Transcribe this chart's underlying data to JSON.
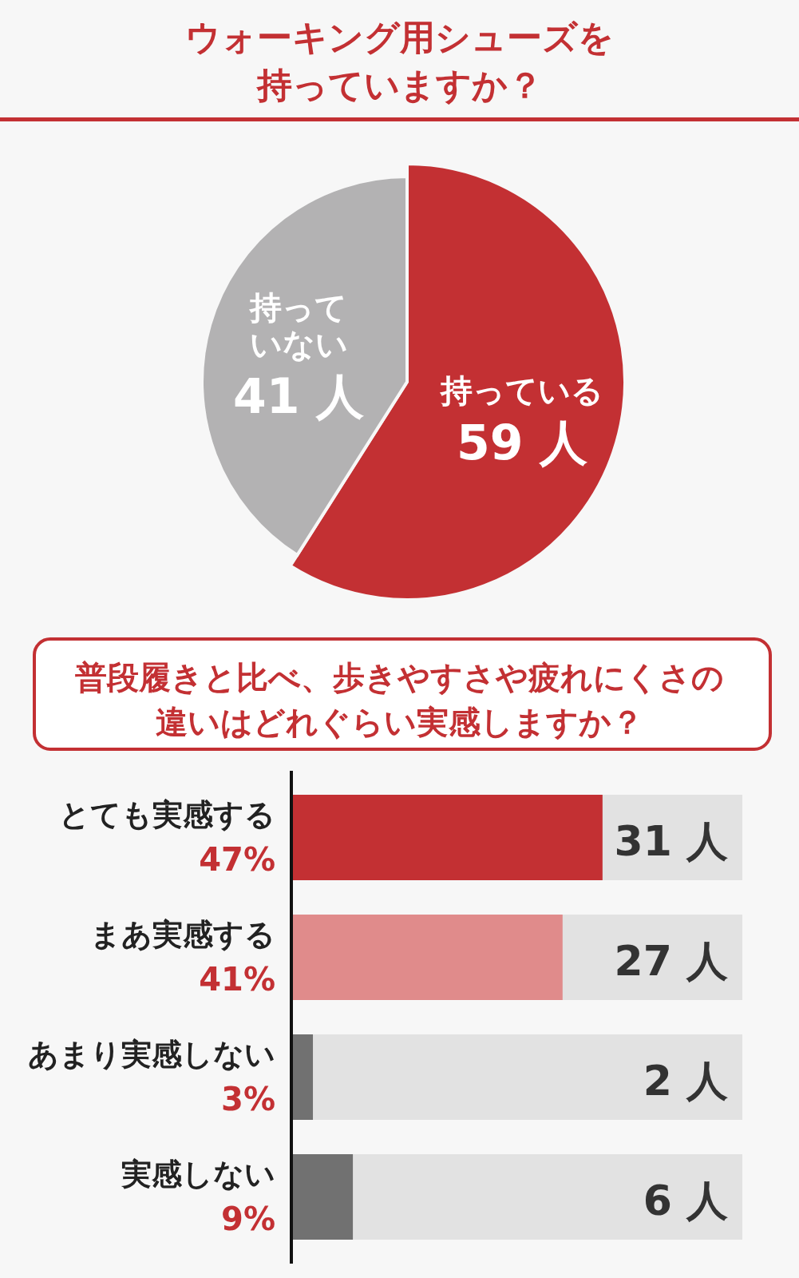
{
  "chart_data": [
    {
      "type": "pie",
      "title": "ウォーキング用シューズを持っていますか？",
      "categories": [
        "持っている",
        "持っていない"
      ],
      "values": [
        59,
        41
      ],
      "colors": [
        "#c33033",
        "#b3b2b3"
      ],
      "value_labels": [
        "59 人",
        "41 人"
      ]
    },
    {
      "type": "bar",
      "orientation": "horizontal",
      "title": "普段履きと比べ、歩きやすさや疲れにくさの違いはどれぐらい実感しますか？",
      "categories": [
        "とても実感する",
        "まあ実感する",
        "あまり実感しない",
        "実感しない"
      ],
      "values": [
        31,
        27,
        2,
        6
      ],
      "colors": [
        "#c33033",
        "#e08b8b",
        "#717171",
        "#717171"
      ],
      "xlim": [
        0,
        45
      ],
      "value_labels": [
        "31 人",
        "27 人",
        "2 人",
        "6 人"
      ],
      "annotations": [
        "47%",
        "41%",
        "3%",
        "9%"
      ]
    }
  ]
}
